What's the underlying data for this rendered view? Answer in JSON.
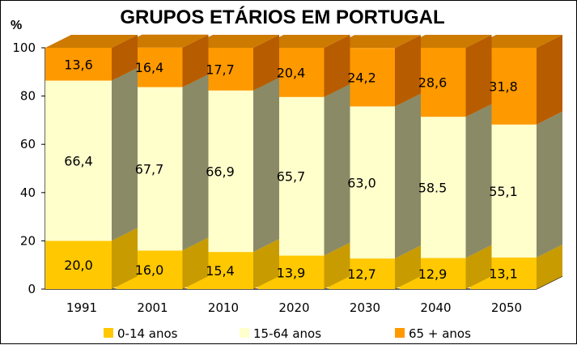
{
  "chart_data": {
    "type": "bar",
    "stacked": true,
    "style": "3d",
    "title": "GRUPOS ETÁRIOS EM PORTUGAL",
    "ylabel": "%",
    "xlabel": "",
    "ylim": [
      0,
      100
    ],
    "yticks": [
      "0",
      "20",
      "40",
      "60",
      "80",
      "100"
    ],
    "categories": [
      "1991",
      "2001",
      "2010",
      "2020",
      "2030",
      "2040",
      "2050"
    ],
    "series": [
      {
        "name": "0-14 anos",
        "color": "#FFC800",
        "values": [
          20.0,
          16.0,
          15.4,
          13.9,
          12.7,
          12.9,
          13.1
        ],
        "labels": [
          "20,0",
          "16,0",
          "15,4",
          "13,9",
          "12,7",
          "12,9",
          "13,1"
        ]
      },
      {
        "name": "15-64 anos",
        "color": "#FFFFCC",
        "values": [
          66.4,
          67.7,
          66.9,
          65.7,
          63.0,
          58.5,
          55.1
        ],
        "labels": [
          "66,4",
          "67,7",
          "66,9",
          "65,7",
          "63,0",
          "58.5",
          "55,1"
        ]
      },
      {
        "name": "65 + anos",
        "color": "#FF9900",
        "values": [
          13.6,
          16.4,
          17.7,
          20.4,
          24.2,
          28.6,
          31.8
        ],
        "labels": [
          "13,6",
          "16,4",
          "17,7",
          "20,4",
          "24,2",
          "28,6",
          "31,8"
        ]
      }
    ],
    "legend_position": "bottom",
    "grid": false
  }
}
